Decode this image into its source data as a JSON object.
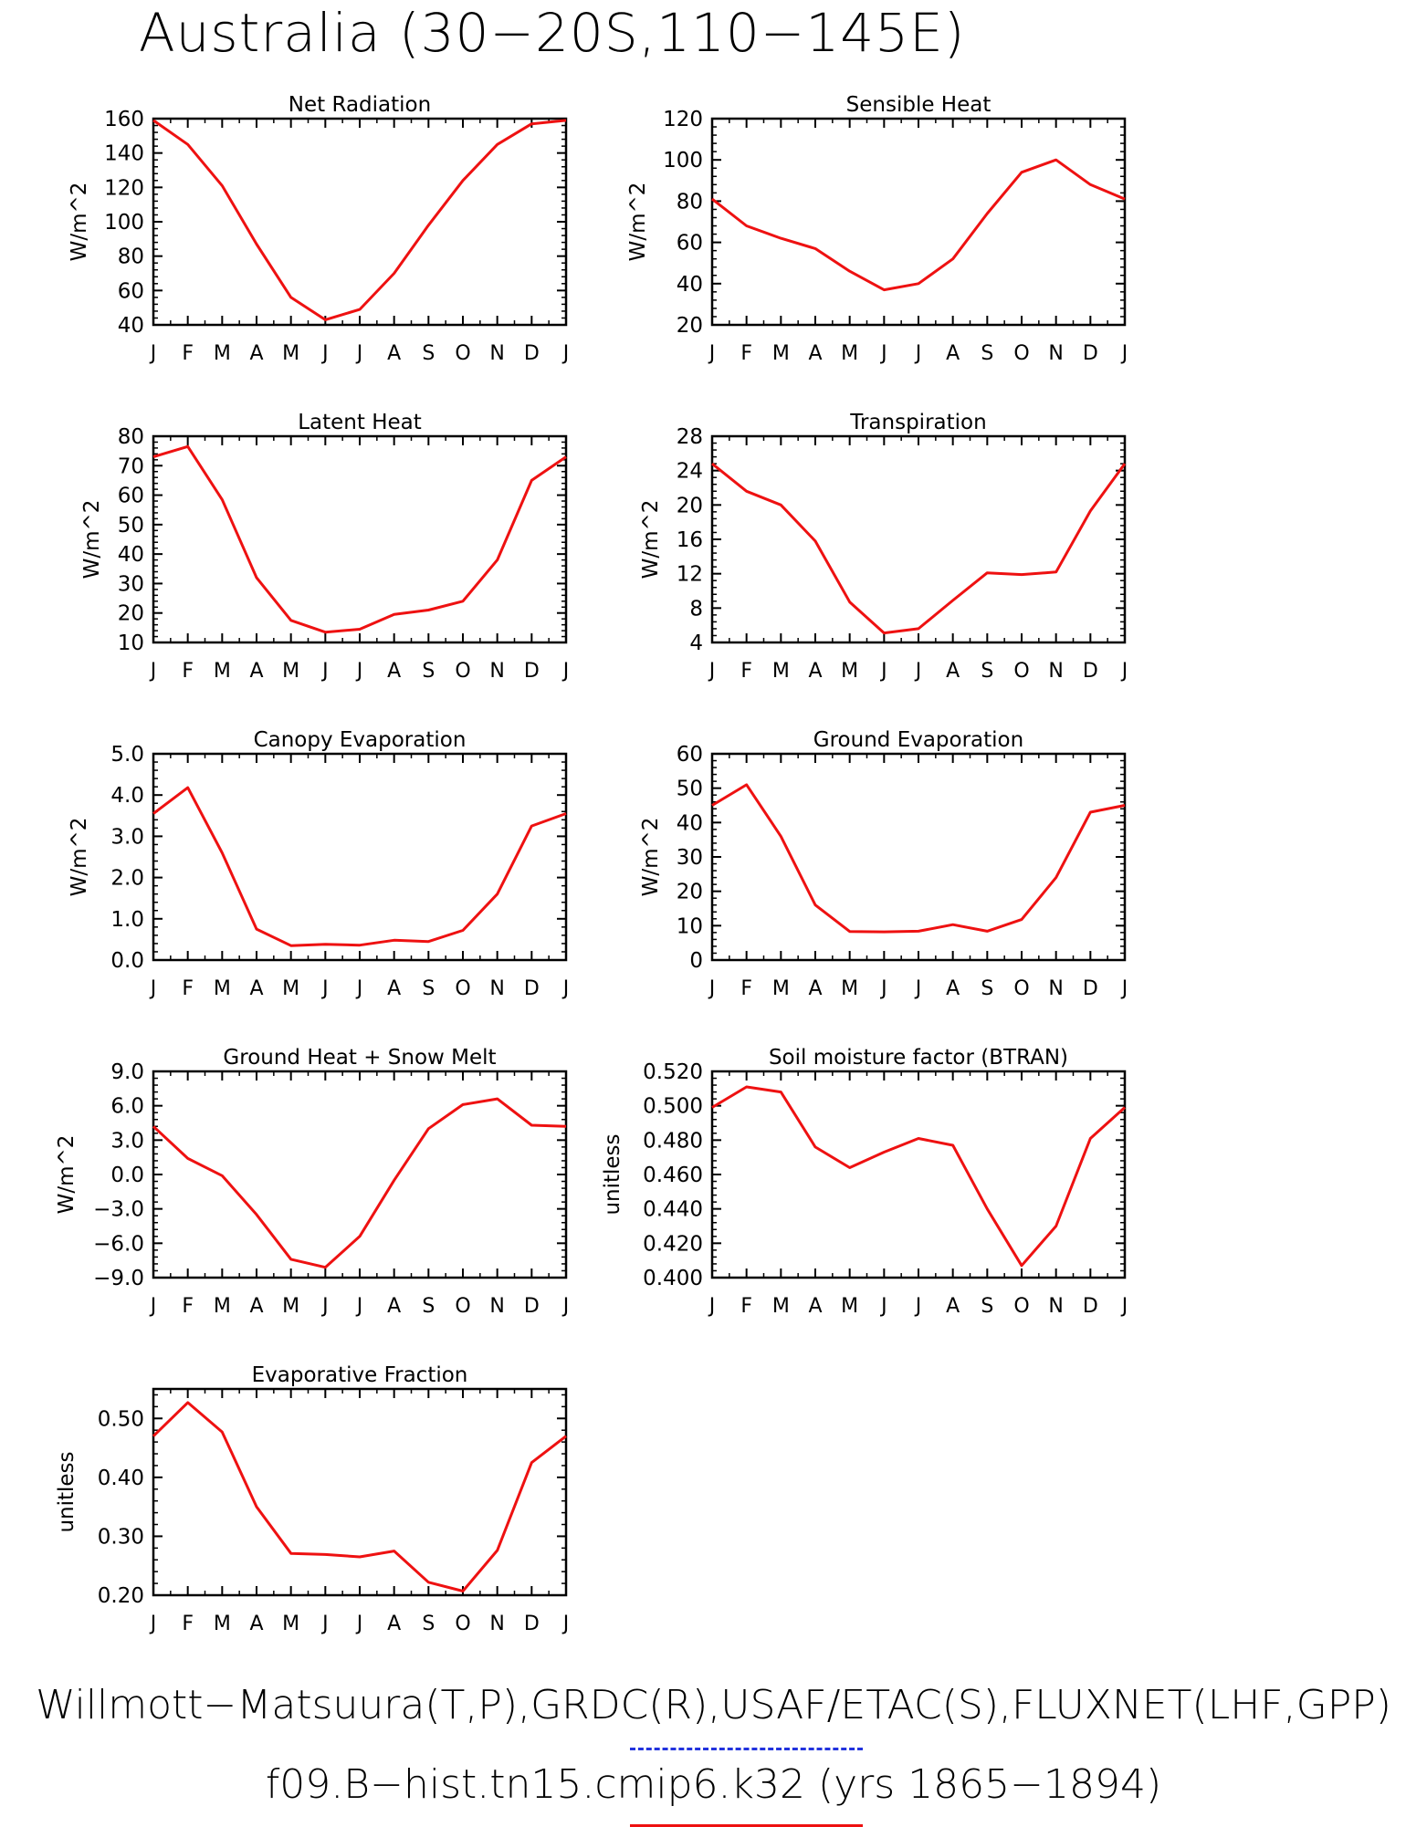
{
  "title": "Australia (30−20S,110−145E)",
  "footer": {
    "line1": "Willmott−Matsuura(T,P),GRDC(R),USAF/ETAC(S),FLUXNET(LHF,GPP)",
    "line2": "f09.B−hist.tn15.cmip6.k32 (yrs 1865−1894)"
  },
  "colors": {
    "series": "#ee1111",
    "obs_legend": "#2233dd",
    "axis": "#000000"
  },
  "months": [
    "J",
    "F",
    "M",
    "A",
    "M",
    "J",
    "J",
    "A",
    "S",
    "O",
    "N",
    "D",
    "J"
  ],
  "chart_data": [
    {
      "type": "line",
      "title": "Net Radiation",
      "ylabel": "W/m^2",
      "ylim": [
        40,
        160
      ],
      "yticks": [
        "40",
        "60",
        "80",
        "100",
        "120",
        "140",
        "160"
      ],
      "values": [
        159,
        145,
        121,
        87,
        56,
        43,
        49,
        70,
        98,
        124,
        145,
        157,
        159
      ]
    },
    {
      "type": "line",
      "title": "Sensible Heat",
      "ylabel": "W/m^2",
      "ylim": [
        20,
        120
      ],
      "yticks": [
        "20",
        "40",
        "60",
        "80",
        "100",
        "120"
      ],
      "values": [
        81,
        68,
        62,
        57,
        46,
        37,
        40,
        52,
        74,
        94,
        100,
        88,
        81
      ]
    },
    {
      "type": "line",
      "title": "Latent Heat",
      "ylabel": "W/m^2",
      "ylim": [
        10,
        80
      ],
      "yticks": [
        "10",
        "20",
        "30",
        "40",
        "50",
        "60",
        "70",
        "80"
      ],
      "values": [
        73,
        76.5,
        58.5,
        32,
        17.5,
        13.5,
        14.5,
        19.5,
        21,
        24,
        38,
        65,
        73
      ]
    },
    {
      "type": "line",
      "title": "Transpiration",
      "ylabel": "W/m^2",
      "ylim": [
        4,
        28
      ],
      "yticks": [
        "4",
        "8",
        "12",
        "16",
        "20",
        "24",
        "28"
      ],
      "values": [
        24.8,
        21.6,
        20,
        15.8,
        8.7,
        5.1,
        5.6,
        8.9,
        12.1,
        11.9,
        12.2,
        19.3,
        24.8
      ]
    },
    {
      "type": "line",
      "title": "Canopy Evaporation",
      "ylabel": "W/m^2",
      "ylim": [
        0,
        5
      ],
      "yticks": [
        "0.0",
        "1.0",
        "2.0",
        "3.0",
        "4.0",
        "5.0"
      ],
      "values": [
        3.55,
        4.18,
        2.6,
        0.75,
        0.35,
        0.38,
        0.36,
        0.48,
        0.45,
        0.72,
        1.6,
        3.25,
        3.55
      ]
    },
    {
      "type": "line",
      "title": "Ground Evaporation",
      "ylabel": "W/m^2",
      "ylim": [
        0,
        60
      ],
      "yticks": [
        "0",
        "10",
        "20",
        "30",
        "40",
        "50",
        "60"
      ],
      "values": [
        45,
        51,
        36,
        16,
        8.3,
        8.2,
        8.4,
        10.3,
        8.4,
        11.8,
        24,
        43,
        45
      ]
    },
    {
      "type": "line",
      "title": "Ground Heat + Snow Melt",
      "ylabel": "W/m^2",
      "ylim": [
        -9,
        9
      ],
      "yticks": [
        "−9.0",
        "−6.0",
        "−3.0",
        "0.0",
        "3.0",
        "6.0",
        "9.0"
      ],
      "values": [
        4.2,
        1.4,
        -0.1,
        -3.5,
        -7.4,
        -8.1,
        -5.4,
        -0.5,
        4.0,
        6.1,
        6.6,
        4.3,
        4.2
      ]
    },
    {
      "type": "line",
      "title": "Soil moisture factor (BTRAN)",
      "ylabel": "unitless",
      "ylim": [
        0.4,
        0.52
      ],
      "yticks": [
        "0.400",
        "0.420",
        "0.440",
        "0.460",
        "0.480",
        "0.500",
        "0.520"
      ],
      "values": [
        0.499,
        0.511,
        0.508,
        0.476,
        0.464,
        0.473,
        0.481,
        0.477,
        0.44,
        0.407,
        0.43,
        0.481,
        0.499
      ]
    },
    {
      "type": "line",
      "title": "Evaporative Fraction",
      "ylabel": "unitless",
      "ylim": [
        0.2,
        0.55
      ],
      "yticks": [
        "0.20",
        "0.30",
        "0.40",
        "0.50"
      ],
      "ytick_values": [
        0.2,
        0.3,
        0.4,
        0.5
      ],
      "values": [
        0.47,
        0.527,
        0.477,
        0.35,
        0.271,
        0.269,
        0.265,
        0.275,
        0.222,
        0.207,
        0.276,
        0.425,
        0.47
      ]
    }
  ]
}
